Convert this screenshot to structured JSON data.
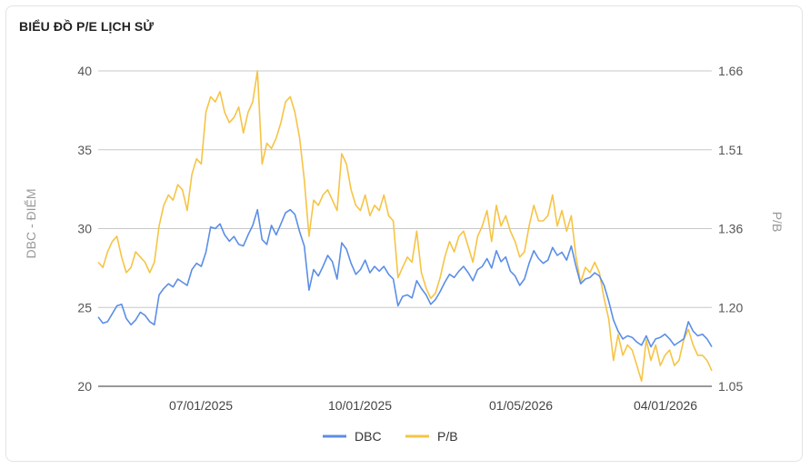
{
  "header": {
    "title": "BIỂU ĐỒ P/E LỊCH SỬ"
  },
  "chart_data": {
    "type": "line",
    "y_left": {
      "label": "DBC - ĐIỂM",
      "range": [
        20,
        40
      ],
      "ticks": [
        "40",
        "35",
        "30",
        "25",
        "20"
      ]
    },
    "y_right": {
      "label": "P/B",
      "range": [
        1.05,
        1.66
      ],
      "ticks": [
        "1.66",
        "1.51",
        "1.36",
        "1.20",
        "1.05"
      ]
    },
    "x_ticks": [
      "07/01/2025",
      "10/01/2025",
      "01/05/2026",
      "04/01/2026"
    ],
    "grid": "horizontal",
    "legend_position": "bottom",
    "series": [
      {
        "name": "DBC",
        "axis": "left",
        "color": "#5b8ee6",
        "values": [
          24.4,
          24.0,
          24.1,
          24.6,
          25.1,
          25.2,
          24.3,
          23.9,
          24.2,
          24.7,
          24.5,
          24.1,
          23.9,
          25.8,
          26.2,
          26.5,
          26.3,
          26.8,
          26.6,
          26.4,
          27.4,
          27.8,
          27.6,
          28.5,
          30.1,
          30.0,
          30.3,
          29.6,
          29.2,
          29.5,
          29.0,
          28.9,
          29.6,
          30.2,
          31.2,
          29.3,
          29.0,
          30.2,
          29.6,
          30.3,
          31.0,
          31.2,
          30.9,
          29.8,
          28.9,
          26.1,
          27.4,
          27.0,
          27.6,
          28.3,
          27.9,
          26.8,
          29.1,
          28.7,
          27.8,
          27.1,
          27.4,
          28.0,
          27.2,
          27.6,
          27.3,
          27.6,
          27.1,
          26.8,
          25.1,
          25.7,
          25.8,
          25.6,
          26.7,
          26.2,
          25.8,
          25.2,
          25.5,
          26.0,
          26.6,
          27.1,
          26.9,
          27.3,
          27.6,
          27.2,
          26.7,
          27.4,
          27.6,
          28.1,
          27.5,
          28.6,
          27.9,
          28.2,
          27.3,
          27.0,
          26.4,
          26.8,
          27.8,
          28.6,
          28.1,
          27.8,
          28.0,
          28.8,
          28.3,
          28.5,
          28.0,
          28.9,
          27.6,
          26.5,
          26.8,
          26.9,
          27.2,
          27.0,
          26.4,
          25.4,
          24.2,
          23.5,
          23.0,
          23.2,
          23.1,
          22.8,
          22.6,
          23.2,
          22.5,
          23.0,
          23.1,
          23.3,
          23.0,
          22.6,
          22.8,
          23.0,
          24.1,
          23.5,
          23.2,
          23.3,
          23.0,
          22.5
        ]
      },
      {
        "name": "P/B",
        "axis": "right",
        "color": "#f6c445",
        "values": [
          1.29,
          1.28,
          1.31,
          1.33,
          1.34,
          1.3,
          1.27,
          1.28,
          1.31,
          1.3,
          1.29,
          1.27,
          1.29,
          1.36,
          1.4,
          1.42,
          1.41,
          1.44,
          1.43,
          1.39,
          1.46,
          1.49,
          1.48,
          1.58,
          1.61,
          1.6,
          1.62,
          1.58,
          1.56,
          1.57,
          1.59,
          1.54,
          1.58,
          1.6,
          1.66,
          1.48,
          1.52,
          1.51,
          1.53,
          1.56,
          1.6,
          1.61,
          1.58,
          1.53,
          1.45,
          1.34,
          1.41,
          1.4,
          1.42,
          1.43,
          1.41,
          1.39,
          1.5,
          1.48,
          1.43,
          1.4,
          1.39,
          1.42,
          1.38,
          1.4,
          1.39,
          1.42,
          1.38,
          1.37,
          1.26,
          1.28,
          1.3,
          1.29,
          1.35,
          1.27,
          1.24,
          1.22,
          1.23,
          1.26,
          1.3,
          1.33,
          1.31,
          1.34,
          1.35,
          1.32,
          1.29,
          1.34,
          1.36,
          1.39,
          1.33,
          1.4,
          1.36,
          1.38,
          1.35,
          1.33,
          1.3,
          1.31,
          1.36,
          1.4,
          1.37,
          1.37,
          1.38,
          1.42,
          1.36,
          1.39,
          1.35,
          1.38,
          1.3,
          1.25,
          1.28,
          1.27,
          1.29,
          1.27,
          1.22,
          1.18,
          1.1,
          1.15,
          1.11,
          1.13,
          1.12,
          1.09,
          1.06,
          1.14,
          1.1,
          1.13,
          1.09,
          1.11,
          1.12,
          1.09,
          1.1,
          1.14,
          1.16,
          1.13,
          1.11,
          1.11,
          1.1,
          1.08
        ]
      }
    ]
  }
}
